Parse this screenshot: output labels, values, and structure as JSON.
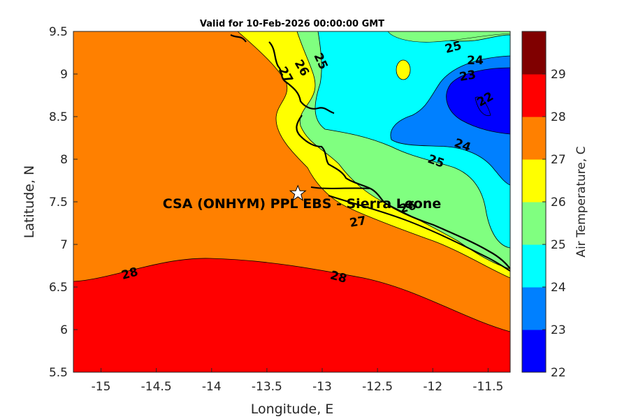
{
  "title": "Valid for 10-Feb-2026 00:00:00 GMT",
  "axes": {
    "xlabel": "Longitude, E",
    "ylabel": "Latitude, N",
    "xlim": [
      -15.25,
      -11.3
    ],
    "ylim": [
      5.5,
      9.5
    ],
    "xticks": [
      "-15",
      "-14.5",
      "-14",
      "-13.5",
      "-13",
      "-12.5",
      "-12",
      "-11.5"
    ],
    "yticks": [
      "5.5",
      "6",
      "6.5",
      "7",
      "7.5",
      "8",
      "8.5",
      "9",
      "9.5"
    ]
  },
  "colorbar": {
    "label": "Air Temperature, C",
    "ticks": [
      "22",
      "23",
      "24",
      "25",
      "26",
      "27",
      "28",
      "29"
    ],
    "colors": [
      "#0000ff",
      "#0080ff",
      "#00ffff",
      "#80ff80",
      "#ffff00",
      "#ff8000",
      "#ff0000",
      "#800000"
    ]
  },
  "contour_labels": [
    "28",
    "28",
    "27",
    "27",
    "26",
    "26",
    "25",
    "25",
    "25",
    "24",
    "24",
    "23",
    "22"
  ],
  "site": {
    "label": "CSA (ONHYM) PPL EBS  - Sierra Leone",
    "lon": -13.22,
    "lat": 7.6,
    "marker": "star-icon"
  }
}
